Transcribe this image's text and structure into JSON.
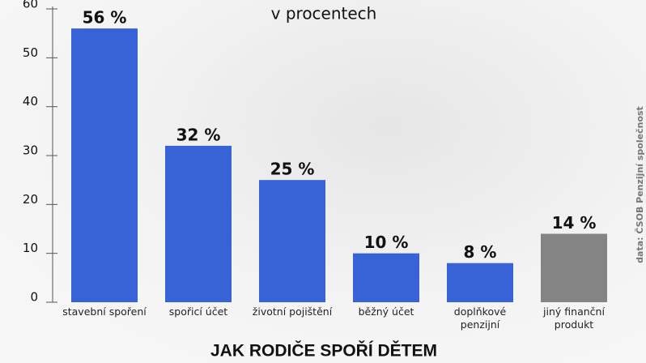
{
  "chart_data": {
    "type": "bar",
    "title": "JAK RODIČE SPOŘÍ DĚTEM",
    "subtitle": "v procentech",
    "source": "data: ČSOB Penzijní společnost",
    "categories": [
      "stavební spoření",
      "spořicí účet",
      "životní pojištění",
      "běžný účet",
      "doplňkové penzijní",
      "jiný finanční produkt"
    ],
    "values": [
      56,
      32,
      25,
      10,
      8,
      14
    ],
    "value_labels": [
      "56 %",
      "32 %",
      "25 %",
      "10 %",
      "8 %",
      "14 %"
    ],
    "colors": [
      "#3763d6",
      "#3763d6",
      "#3763d6",
      "#3763d6",
      "#3763d6",
      "#848484"
    ],
    "ylim": [
      0,
      60
    ],
    "yticks": [
      0,
      10,
      20,
      30,
      40,
      50,
      60
    ],
    "grid": false
  }
}
